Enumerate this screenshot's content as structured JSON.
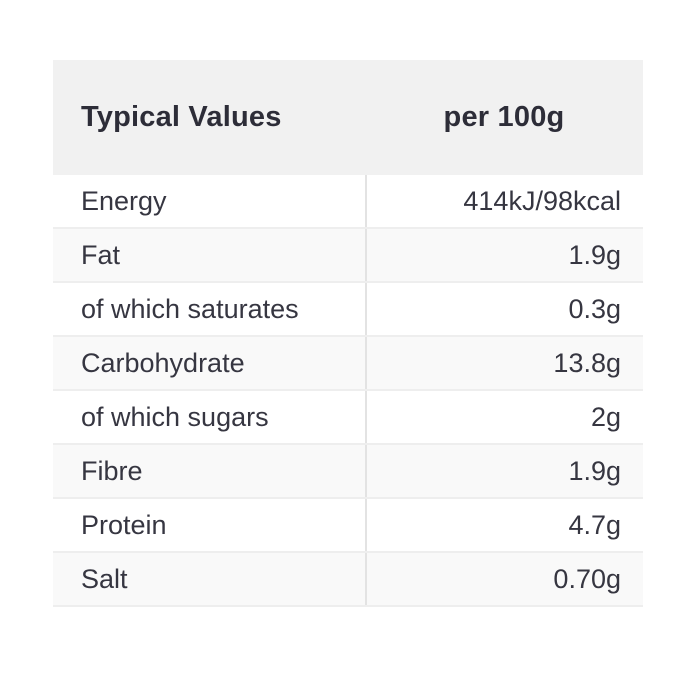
{
  "table": {
    "header": {
      "col1": "Typical Values",
      "col2": "per 100g"
    },
    "rows": [
      {
        "label": "Energy",
        "value": "414kJ/98kcal"
      },
      {
        "label": "Fat",
        "value": "1.9g"
      },
      {
        "label": "of which saturates",
        "value": "0.3g"
      },
      {
        "label": "Carbohydrate",
        "value": "13.8g"
      },
      {
        "label": "of which sugars",
        "value": "2g"
      },
      {
        "label": "Fibre",
        "value": "1.9g"
      },
      {
        "label": "Protein",
        "value": "4.7g"
      },
      {
        "label": "Salt",
        "value": "0.70g"
      }
    ],
    "colors": {
      "header_bg": "#f1f1f1",
      "stripe_bg": "#f9f9f9",
      "border": "#eeeeee",
      "divider": "#e3e3e3",
      "text": "#363641",
      "header_text": "#2d2d38",
      "page_bg": "#ffffff"
    }
  }
}
